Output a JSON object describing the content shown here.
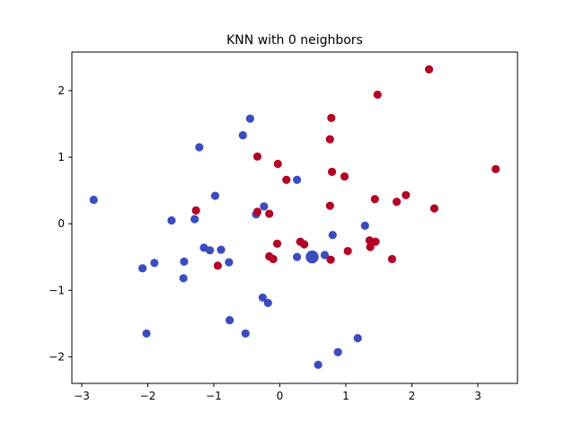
{
  "chart_data": {
    "type": "scatter",
    "title": "KNN with 0 neighbors",
    "xlabel": "",
    "ylabel": "",
    "xlim": [
      -3.15,
      3.6
    ],
    "ylim": [
      -2.4,
      2.58
    ],
    "xticks": [
      -3,
      -2,
      -1,
      0,
      1,
      2,
      3
    ],
    "yticks": [
      -2,
      -1,
      0,
      1,
      2
    ],
    "grid": false,
    "colors": {
      "class_0": "#3b4cc0",
      "class_1": "#b40426"
    },
    "series": [
      {
        "class": 0,
        "color": "#3b4cc0",
        "points": [
          [
            -2.82,
            0.36
          ],
          [
            -2.08,
            -0.67
          ],
          [
            -2.02,
            -1.65
          ],
          [
            -1.9,
            -0.59
          ],
          [
            -1.64,
            0.05
          ],
          [
            -1.46,
            -0.82
          ],
          [
            -1.45,
            -0.57
          ],
          [
            -1.29,
            0.07
          ],
          [
            -1.22,
            1.15
          ],
          [
            -1.15,
            -0.36
          ],
          [
            -1.06,
            -0.4
          ],
          [
            -0.98,
            0.42
          ],
          [
            -0.89,
            -0.39
          ],
          [
            -0.77,
            -0.58
          ],
          [
            -0.76,
            -1.45
          ],
          [
            -0.56,
            1.33
          ],
          [
            -0.52,
            -1.65
          ],
          [
            -0.45,
            1.58
          ],
          [
            -0.36,
            0.14
          ],
          [
            -0.26,
            -1.11
          ],
          [
            -0.24,
            0.26
          ],
          [
            -0.18,
            -1.19
          ],
          [
            0.26,
            0.66
          ],
          [
            0.26,
            -0.5
          ],
          [
            0.68,
            -0.47
          ],
          [
            0.8,
            -0.17
          ],
          [
            0.88,
            -1.93
          ],
          [
            0.58,
            -2.12
          ],
          [
            1.18,
            -1.72
          ],
          [
            1.29,
            -0.03
          ]
        ]
      },
      {
        "class": 1,
        "color": "#b40426",
        "points": [
          [
            -1.27,
            0.2
          ],
          [
            -0.94,
            -0.63
          ],
          [
            -0.34,
            0.18
          ],
          [
            -0.34,
            1.01
          ],
          [
            -0.16,
            0.15
          ],
          [
            -0.16,
            -0.49
          ],
          [
            -0.1,
            -0.53
          ],
          [
            -0.04,
            -0.3
          ],
          [
            -0.03,
            0.9
          ],
          [
            0.1,
            0.66
          ],
          [
            0.31,
            -0.27
          ],
          [
            0.37,
            -0.31
          ],
          [
            0.76,
            0.27
          ],
          [
            0.76,
            1.27
          ],
          [
            0.77,
            -0.54
          ],
          [
            0.78,
            1.59
          ],
          [
            0.79,
            0.78
          ],
          [
            0.98,
            0.71
          ],
          [
            1.03,
            -0.41
          ],
          [
            1.36,
            -0.25
          ],
          [
            1.37,
            -0.35
          ],
          [
            1.44,
            0.37
          ],
          [
            1.45,
            -0.27
          ],
          [
            1.48,
            1.94
          ],
          [
            1.7,
            -0.53
          ],
          [
            1.77,
            0.33
          ],
          [
            1.91,
            0.43
          ],
          [
            2.26,
            2.32
          ],
          [
            2.34,
            0.23
          ],
          [
            3.27,
            0.82
          ]
        ]
      }
    ],
    "query_point": {
      "x": 0.49,
      "y": -0.5,
      "color": "#3b4cc0"
    }
  }
}
